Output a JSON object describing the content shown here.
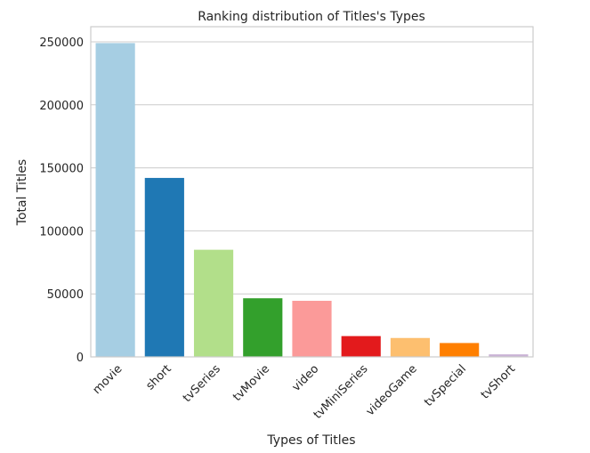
{
  "chart_data": {
    "type": "bar",
    "title": "Ranking distribution of Titles's Types",
    "xlabel": "Types of Titles",
    "ylabel": "Total Titles",
    "categories": [
      "movie",
      "short",
      "tvSeries",
      "tvMovie",
      "video",
      "tvMiniSeries",
      "videoGame",
      "tvSpecial",
      "tvShort"
    ],
    "values": [
      249000,
      142000,
      85000,
      46500,
      44500,
      16500,
      15000,
      11000,
      2000
    ],
    "colors": [
      "#a6cee3",
      "#1f78b4",
      "#b2df8a",
      "#33a02c",
      "#fb9a99",
      "#e31a1c",
      "#fdbf6f",
      "#ff7f00",
      "#cab2d6"
    ],
    "ylim": [
      0,
      262000
    ],
    "yticks": [
      0,
      50000,
      100000,
      150000,
      200000,
      250000
    ],
    "grid": true,
    "legend": "none"
  }
}
